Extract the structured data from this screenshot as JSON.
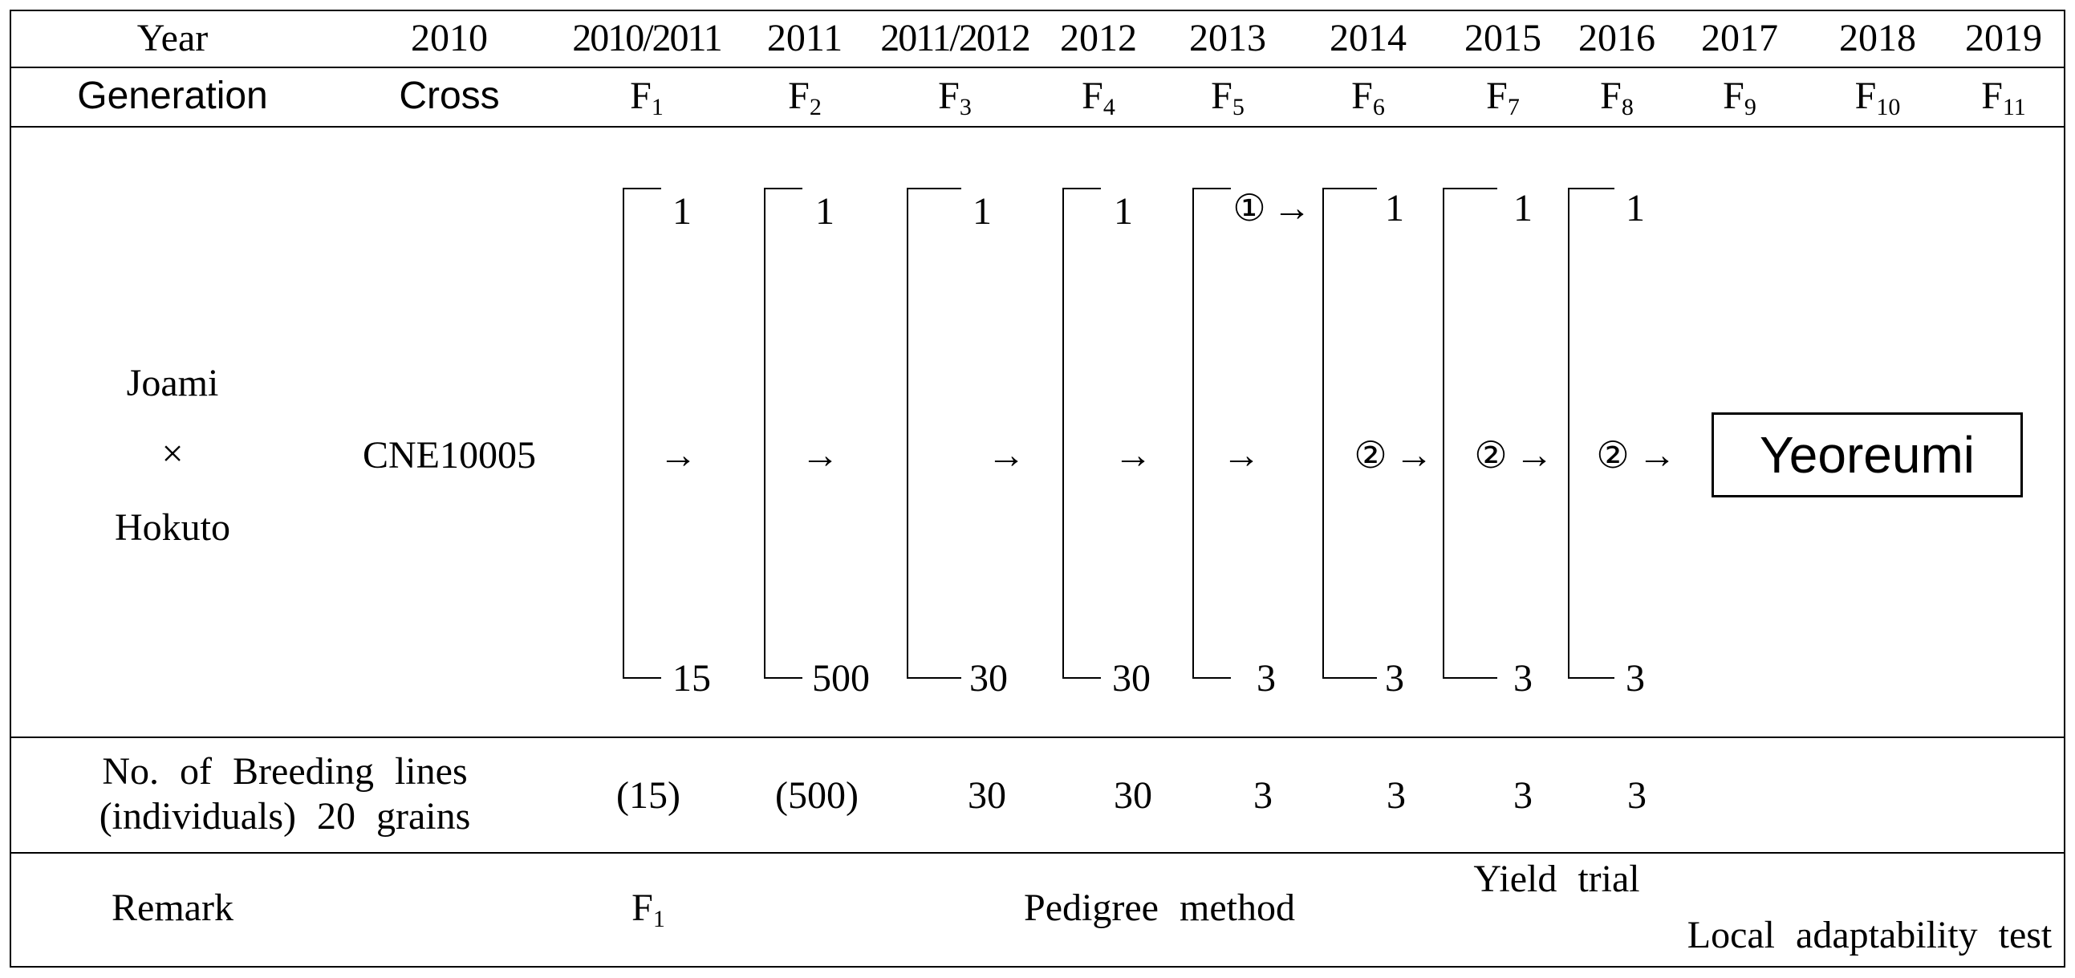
{
  "header": {
    "year_label": "Year",
    "years": [
      "2010",
      "2010/2011",
      "2011",
      "2011/2012",
      "2012",
      "2013",
      "2014",
      "2015",
      "2016",
      "2017",
      "2018",
      "2019"
    ],
    "generation_label": "Generation",
    "cross_label": "Cross",
    "generations": [
      {
        "base": "F",
        "sub": "1"
      },
      {
        "base": "F",
        "sub": "2"
      },
      {
        "base": "F",
        "sub": "3"
      },
      {
        "base": "F",
        "sub": "4"
      },
      {
        "base": "F",
        "sub": "5"
      },
      {
        "base": "F",
        "sub": "6"
      },
      {
        "base": "F",
        "sub": "7"
      },
      {
        "base": "F",
        "sub": "8"
      },
      {
        "base": "F",
        "sub": "9"
      },
      {
        "base": "F",
        "sub": "10"
      },
      {
        "base": "F",
        "sub": "11"
      }
    ]
  },
  "parents": {
    "female": "Joami",
    "cross_symbol": "×",
    "male": "Hokuto"
  },
  "cross_name": "CNE10005",
  "brackets": [
    {
      "top": "1",
      "bottom": "15"
    },
    {
      "top": "1",
      "bottom": "500"
    },
    {
      "top": "1",
      "bottom": "30"
    },
    {
      "top": "1",
      "bottom": "30"
    },
    {
      "top": "",
      "bottom": "3"
    },
    {
      "top": "1",
      "bottom": "3"
    },
    {
      "top": "1",
      "bottom": "3"
    },
    {
      "top": "1",
      "bottom": "3"
    }
  ],
  "selections": {
    "first": "①",
    "second": "②"
  },
  "arrow": "→",
  "variety_name": "Yeoreumi",
  "breeding_lines": {
    "label_line1": "No. of Breeding lines",
    "label_line2": "(individuals) 20 grains",
    "values": [
      "(15)",
      "(500)",
      "30",
      "30",
      "3",
      "3",
      "3",
      "3"
    ]
  },
  "remark": {
    "label": "Remark",
    "f1": {
      "base": "F",
      "sub": "1"
    },
    "pedigree": "Pedigree method",
    "yield_trial": "Yield trial",
    "local_test": "Local adaptability test"
  }
}
